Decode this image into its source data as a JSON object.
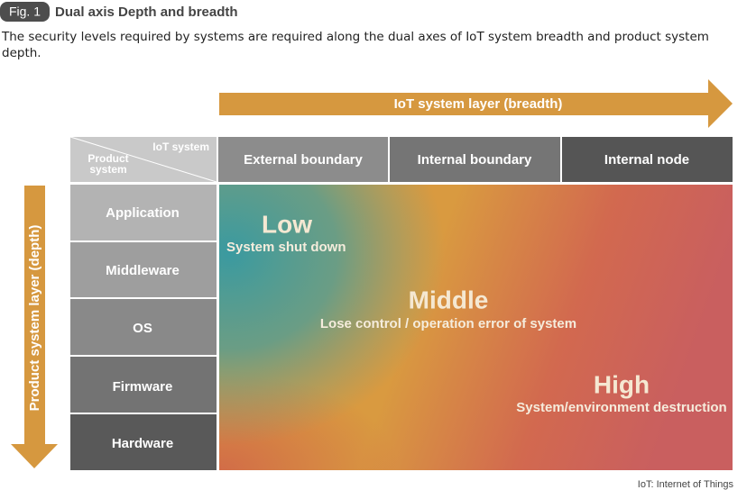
{
  "header": {
    "fig_label": "Fig. 1",
    "title": "Dual axis Depth and breadth",
    "caption": "The security levels required by systems are required along the dual axes of IoT system breadth and product system depth."
  },
  "axes": {
    "horizontal": "IoT system layer (breadth)",
    "vertical": "Product system layer (depth)"
  },
  "corner": {
    "column_label": "IoT system",
    "row_label": "Product system"
  },
  "columns": [
    "External boundary",
    "Internal boundary",
    "Internal node"
  ],
  "rows": [
    "Application",
    "Middleware",
    "OS",
    "Firmware",
    "Hardware"
  ],
  "levels": [
    {
      "label": "Low",
      "description": "System shut down"
    },
    {
      "label": "Middle",
      "description": "Lose control / operation error of system"
    },
    {
      "label": "High",
      "description": "System/environment destruction"
    }
  ],
  "footnote": "IoT: Internet of Things"
}
